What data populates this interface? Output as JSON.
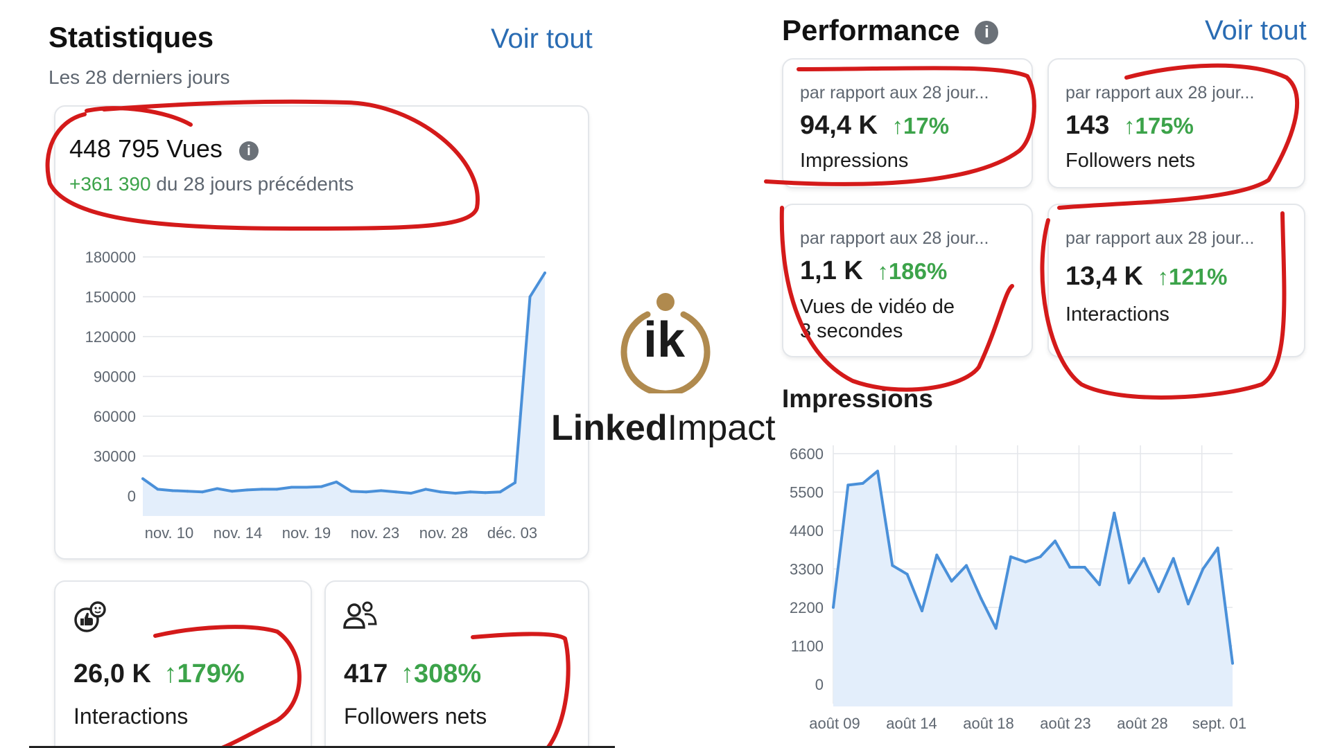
{
  "left": {
    "title": "Statistiques",
    "see_all": "Voir tout",
    "subtitle": "Les 28 derniers jours",
    "views": {
      "value": "448 795 Vues",
      "delta": "+361 390",
      "delta_text": "du 28 jours précédents"
    },
    "tiles": [
      {
        "value": "26,0 K",
        "change": "↑179%",
        "label": "Interactions",
        "icon": "thumbs-up-reaction-icon"
      },
      {
        "value": "417",
        "change": "↑308%",
        "label": "Followers nets",
        "icon": "people-icon"
      }
    ]
  },
  "right": {
    "title": "Performance",
    "see_all": "Voir tout",
    "cards": [
      {
        "caption": "par rapport aux 28 jour...",
        "value": "94,4 K",
        "change": "↑17%",
        "label": "Impressions"
      },
      {
        "caption": "par rapport aux 28 jour...",
        "value": "143",
        "change": "↑175%",
        "label": "Followers nets"
      },
      {
        "caption": "par rapport aux 28 jour...",
        "value": "1,1 K",
        "change": "↑186%",
        "label_line1": "Vues de vidéo de",
        "label_line2": "3 secondes"
      },
      {
        "caption": "par rapport aux 28 jour...",
        "value": "13,4 K",
        "change": "↑121%",
        "label": "Interactions"
      }
    ],
    "impressions_title": "Impressions"
  },
  "logo": {
    "monogram": "ik",
    "word_bold": "Linked",
    "word_light": "Impact"
  },
  "colors": {
    "line": "#4a90d9",
    "fill": "#e3eefb",
    "accent_link": "#2a6cb3",
    "positive": "#3ca34a",
    "annotation": "#d41a1a",
    "logo_gold": "#b08a4e"
  },
  "chart_data": [
    {
      "type": "area",
      "categories": [
        "nov. 10",
        "nov. 14",
        "nov. 19",
        "nov. 23",
        "nov. 28",
        "déc. 03"
      ],
      "x": [
        "nov. 06",
        "nov. 07",
        "nov. 08",
        "nov. 09",
        "nov. 10",
        "nov. 11",
        "nov. 12",
        "nov. 13",
        "nov. 14",
        "nov. 15",
        "nov. 16",
        "nov. 17",
        "nov. 18",
        "nov. 19",
        "nov. 20",
        "nov. 21",
        "nov. 22",
        "nov. 23",
        "nov. 24",
        "nov. 25",
        "nov. 26",
        "nov. 27",
        "nov. 28",
        "nov. 29",
        "nov. 30",
        "déc. 01",
        "déc. 02",
        "déc. 03"
      ],
      "values": [
        13000,
        5000,
        4000,
        3500,
        3000,
        5500,
        3500,
        4500,
        5000,
        5000,
        6500,
        6500,
        7000,
        10500,
        3500,
        3000,
        4000,
        3000,
        2000,
        5000,
        3000,
        2000,
        3000,
        2500,
        3000,
        10000,
        150000,
        168000
      ],
      "yticks": [
        0,
        30000,
        60000,
        90000,
        120000,
        150000,
        180000
      ],
      "ylim": [
        0,
        180000
      ],
      "grid": true
    },
    {
      "type": "area",
      "title": "Impressions",
      "categories": [
        "août 09",
        "août 14",
        "août 18",
        "août 23",
        "août 28",
        "sept. 01"
      ],
      "x": [
        "août 09",
        "août 10",
        "août 11",
        "août 12",
        "août 13",
        "août 14",
        "août 15",
        "août 16",
        "août 17",
        "août 18",
        "août 19",
        "août 20",
        "août 21",
        "août 22",
        "août 23",
        "août 24",
        "août 25",
        "août 26",
        "août 27",
        "août 28",
        "août 29",
        "août 30",
        "août 31",
        "sept. 01",
        "sept. 02",
        "sept. 03",
        "sept. 04",
        "sept. 05"
      ],
      "values": [
        2200,
        5700,
        5750,
        6100,
        3400,
        3150,
        2100,
        3700,
        2950,
        3400,
        2450,
        1600,
        3650,
        3500,
        3650,
        4100,
        3350,
        3350,
        2850,
        4900,
        2900,
        3600,
        2650,
        3600,
        2300,
        3300,
        3900,
        600
      ],
      "yticks": [
        0,
        1100,
        2200,
        3300,
        4400,
        5500,
        6600
      ],
      "ylim": [
        0,
        6600
      ],
      "grid": true
    }
  ]
}
